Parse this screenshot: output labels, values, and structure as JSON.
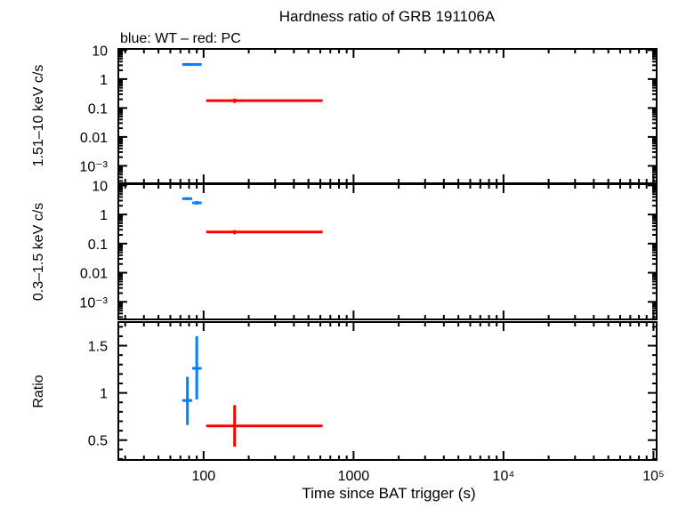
{
  "chart_data": [
    {
      "type": "scatter",
      "title": "Hardness ratio of GRB 191106A",
      "subtitle": "blue: WT – red: PC",
      "ylabel": "1.51–10 keV c/s",
      "yscale": "log",
      "ylim": [
        0.00025,
        11
      ],
      "yticks": [
        "10",
        "1",
        "0.1",
        "0.01",
        "10⁻³"
      ],
      "series": [
        {
          "color": "#0080ff",
          "points": [
            {
              "x": 78,
              "xlo": 72,
              "xhi": 84,
              "y": 3.2,
              "ylo": 2.9,
              "yhi": 3.6
            },
            {
              "x": 90,
              "xlo": 84,
              "xhi": 97,
              "y": 3.2,
              "ylo": 2.9,
              "yhi": 3.5
            }
          ]
        },
        {
          "color": "#ff0000",
          "points": [
            {
              "x": 161,
              "xlo": 104,
              "xhi": 622,
              "y": 0.18,
              "ylo": 0.15,
              "yhi": 0.21
            }
          ]
        }
      ]
    },
    {
      "type": "scatter",
      "ylabel": "0.3–1.5 keV c/s",
      "yscale": "log",
      "ylim": [
        0.00025,
        11
      ],
      "yticks": [
        "10",
        "1",
        "0.1",
        "0.01",
        "10⁻³"
      ],
      "series": [
        {
          "color": "#0080ff",
          "points": [
            {
              "x": 78,
              "xlo": 72,
              "xhi": 84,
              "y": 3.5,
              "ylo": 3.1,
              "yhi": 3.9
            },
            {
              "x": 90,
              "xlo": 84,
              "xhi": 97,
              "y": 2.5,
              "ylo": 2.2,
              "yhi": 2.9
            }
          ]
        },
        {
          "color": "#ff0000",
          "points": [
            {
              "x": 161,
              "xlo": 104,
              "xhi": 622,
              "y": 0.25,
              "ylo": 0.21,
              "yhi": 0.29
            }
          ]
        }
      ]
    },
    {
      "type": "scatter",
      "ylabel": "Ratio",
      "xlabel": "Time since BAT trigger (s)",
      "xscale": "log",
      "xlim": [
        27,
        105000
      ],
      "xticks": [
        "100",
        "1000",
        "10⁴",
        "10⁵"
      ],
      "yscale": "linear",
      "ylim": [
        0.29,
        1.75
      ],
      "yticks": [
        "1.5",
        "1",
        "0.5"
      ],
      "series": [
        {
          "color": "#0080ff",
          "points": [
            {
              "x": 78,
              "xlo": 72,
              "xhi": 84,
              "y": 0.92,
              "ylo": 0.66,
              "yhi": 1.17
            },
            {
              "x": 90,
              "xlo": 84,
              "xhi": 97,
              "y": 1.26,
              "ylo": 0.93,
              "yhi": 1.6
            }
          ]
        },
        {
          "color": "#ff0000",
          "points": [
            {
              "x": 161,
              "xlo": 104,
              "xhi": 622,
              "y": 0.65,
              "ylo": 0.43,
              "yhi": 0.87
            }
          ]
        }
      ]
    }
  ]
}
